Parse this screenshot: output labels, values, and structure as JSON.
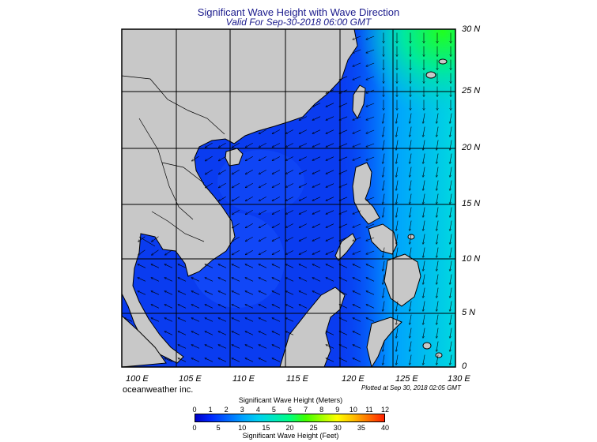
{
  "header": {
    "title": "Significant Wave Height with Wave Direction",
    "subtitle": "Valid For Sep-30-2018 06:00 GMT"
  },
  "map": {
    "region": "South China Sea / Western Pacific",
    "lat_labels": [
      "30 N",
      "25 N",
      "20 N",
      "15 N",
      "10 N",
      "5 N",
      "0"
    ],
    "lon_labels": [
      "100 E",
      "105 E",
      "110 E",
      "115 E",
      "120 E",
      "125 E",
      "130 E"
    ],
    "land_color": "#c8c8c8",
    "grid_color": "#000000"
  },
  "footer": {
    "credit": "oceanweather inc.",
    "plotted": "Plotted at Sep 30, 2018 02:05 GMT"
  },
  "legend": {
    "title_meters": "Significant Wave Height (Meters)",
    "title_feet": "Significant Wave Height (Feet)",
    "meters_ticks": [
      "0",
      "1",
      "2",
      "3",
      "4",
      "5",
      "6",
      "7",
      "8",
      "9",
      "10",
      "11",
      "12"
    ],
    "feet_ticks": [
      "0",
      "5",
      "10",
      "15",
      "20",
      "25",
      "30",
      "35",
      "40"
    ],
    "colors": [
      "#0000c8",
      "#0028ff",
      "#0064ff",
      "#00a0ff",
      "#00d0f0",
      "#00e8c0",
      "#00ff80",
      "#40ff00",
      "#a0ff00",
      "#ffff00",
      "#ffc000",
      "#ff7000",
      "#ff2000"
    ]
  }
}
